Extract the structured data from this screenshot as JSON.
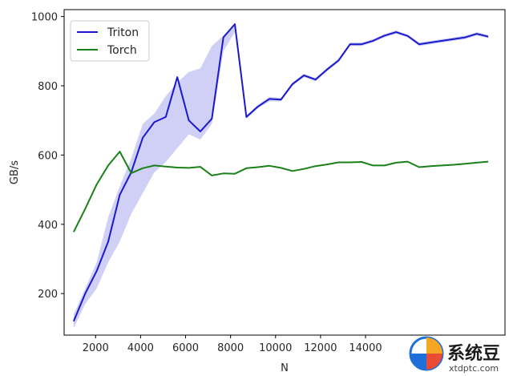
{
  "chart_data": {
    "type": "line",
    "xlabel": "N",
    "ylabel": "GB/s",
    "xlim": [
      600,
      20200
    ],
    "ylim": [
      80,
      1020
    ],
    "xticks": [
      2000,
      4000,
      6000,
      8000,
      10000,
      12000,
      14000
    ],
    "xtick_labels": [
      "2000",
      "4000",
      "6000",
      "8000",
      "10000",
      "12000",
      "14000"
    ],
    "yticks": [
      200,
      400,
      600,
      800,
      1000
    ],
    "ytick_labels": [
      "200",
      "400",
      "600",
      "800",
      "1000"
    ],
    "grid": false,
    "legend_position": "top-left",
    "x": [
      1024,
      1536,
      2048,
      2560,
      3072,
      3584,
      4096,
      4608,
      5120,
      5632,
      6144,
      6656,
      7168,
      7680,
      8192,
      8704,
      9216,
      9728,
      10240,
      10752,
      11264,
      11776,
      12288,
      12800,
      13312,
      13824,
      14336,
      14848,
      15360,
      15872,
      16384,
      16896,
      17408,
      17920,
      18432,
      18944,
      19456
    ],
    "series": [
      {
        "name": "Triton",
        "color": "#1a1acc",
        "band_color": "#c8c8f4",
        "values": [
          120,
          200,
          265,
          350,
          485,
          550,
          650,
          695,
          710,
          825,
          700,
          668,
          705,
          940,
          978,
          710,
          740,
          762,
          760,
          805,
          830,
          818,
          847,
          873,
          920,
          920,
          930,
          945,
          955,
          944,
          920,
          925,
          930,
          935,
          940,
          950,
          942
        ],
        "band_low": [
          100,
          170,
          215,
          290,
          350,
          430,
          490,
          550,
          580,
          620,
          660,
          645,
          690,
          900,
          955,
          705,
          735,
          755,
          755,
          800,
          825,
          812,
          842,
          868,
          915,
          915,
          925,
          940,
          950,
          940,
          915,
          920,
          925,
          930,
          935,
          945,
          937
        ],
        "band_high": [
          140,
          215,
          290,
          420,
          510,
          590,
          690,
          720,
          770,
          810,
          840,
          850,
          915,
          945,
          980,
          715,
          745,
          768,
          765,
          810,
          835,
          822,
          852,
          878,
          925,
          925,
          935,
          950,
          960,
          948,
          925,
          930,
          935,
          940,
          945,
          955,
          947
        ]
      },
      {
        "name": "Torch",
        "color": "#1a801a",
        "values": [
          378,
          445,
          515,
          570,
          610,
          548,
          562,
          570,
          567,
          564,
          563,
          566,
          541,
          547,
          546,
          562,
          565,
          569,
          563,
          554,
          560,
          568,
          573,
          579,
          579,
          580,
          570,
          570,
          578,
          581,
          565,
          568,
          570,
          572,
          575,
          578,
          581
        ]
      }
    ]
  },
  "watermark": {
    "name_cn": "系统豆",
    "url": "xtdptc.com"
  }
}
